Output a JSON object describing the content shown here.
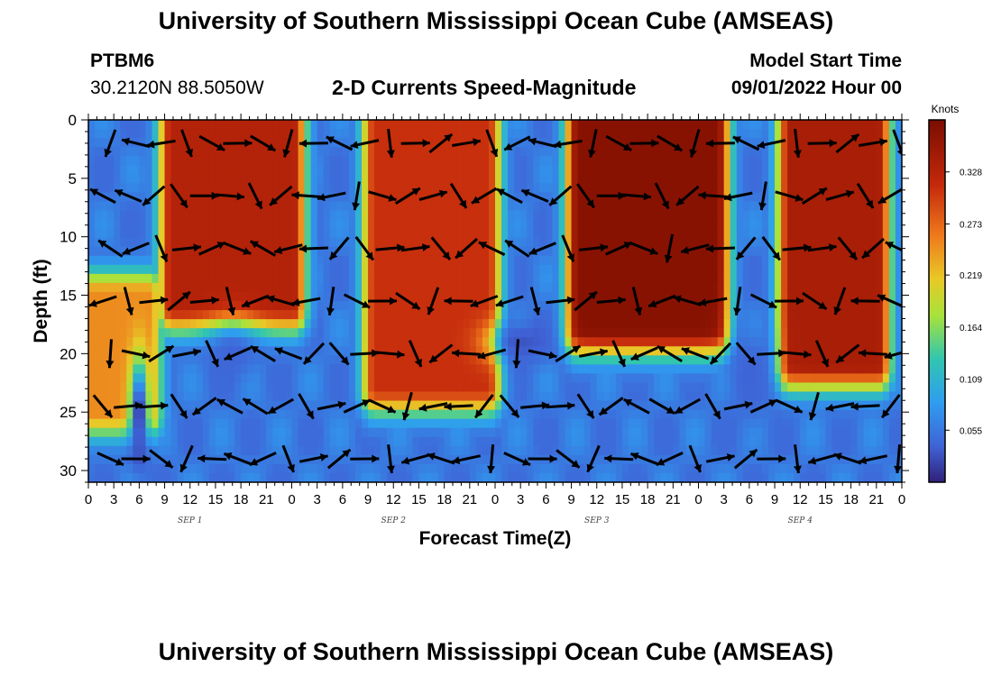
{
  "header": {
    "title": "University of Southern Mississippi Ocean Cube (AMSEAS)",
    "station": "PTBM6",
    "coords": "30.2120N  88.5050W",
    "plot_title": "2-D Currents Speed-Magnitude",
    "model_label": "Model Start Time",
    "model_time": "09/01/2022 Hour 00"
  },
  "footer": {
    "title": "University of Southern Mississippi Ocean Cube (AMSEAS)"
  },
  "colors": {
    "low": "#30207a",
    "mid": "#30c6b0",
    "high": "#7a0d00",
    "arrow": "#000000"
  },
  "chart_data": {
    "type": "heatmap",
    "title": "2-D Currents Speed-Magnitude",
    "xlabel": "Forecast Time(Z)",
    "ylabel": "Depth (ft)",
    "xlim": [
      0,
      96
    ],
    "ylim": [
      0,
      31
    ],
    "x_ticks": [
      0,
      3,
      6,
      9,
      12,
      15,
      18,
      21,
      24,
      27,
      30,
      33,
      36,
      39,
      42,
      45,
      48,
      51,
      54,
      57,
      60,
      63,
      66,
      69,
      72,
      75,
      78,
      81,
      84,
      87,
      90,
      93,
      96
    ],
    "x_tick_labels": [
      "0",
      "3",
      "6",
      "9",
      "12",
      "15",
      "18",
      "21",
      "0",
      "3",
      "6",
      "9",
      "12",
      "15",
      "18",
      "21",
      "0",
      "3",
      "6",
      "9",
      "12",
      "15",
      "18",
      "21",
      "0",
      "3",
      "6",
      "9",
      "12",
      "15",
      "18",
      "21",
      "0"
    ],
    "y_ticks": [
      0,
      5,
      10,
      15,
      20,
      25,
      30
    ],
    "y_tick_labels": [
      "0",
      "5",
      "10",
      "15",
      "20",
      "25",
      "30"
    ],
    "day_labels": [
      {
        "text": "SEP 1",
        "hour": 12
      },
      {
        "text": "SEP 2",
        "hour": 36
      },
      {
        "text": "SEP 3",
        "hour": 60
      },
      {
        "text": "SEP 4",
        "hour": 84
      }
    ],
    "colorbar": {
      "label": "Knots",
      "min": 0,
      "max": 0.383,
      "ticks": [
        0.055,
        0.109,
        0.164,
        0.219,
        0.273,
        0.328
      ],
      "tick_labels": [
        "0.055",
        "0.109",
        "0.164",
        "0.219",
        "0.273",
        "0.328"
      ]
    },
    "speed_peaks_knots": [
      {
        "hours": [
          11,
          23
        ],
        "depth_ft": [
          0,
          15
        ],
        "speed": 0.33
      },
      {
        "hours": [
          35,
          46
        ],
        "depth_ft": [
          0,
          22
        ],
        "speed": 0.31
      },
      {
        "hours": [
          59,
          73
        ],
        "depth_ft": [
          0,
          17
        ],
        "speed": 0.37
      },
      {
        "hours": [
          84,
          92
        ],
        "depth_ft": [
          0,
          20
        ],
        "speed": 0.34
      },
      {
        "hours": [
          0,
          6
        ],
        "depth_ft": [
          16,
          24
        ],
        "speed": 0.25
      }
    ],
    "vector_angles_deg": [
      {
        "hour": 2,
        "depth_ft": 2,
        "angle": 110
      },
      {
        "hour": 4,
        "depth_ft": 8,
        "angle": 90
      },
      {
        "hour": 11,
        "depth_ft": 2,
        "angle": 70
      },
      {
        "hour": 11,
        "depth_ft": 6,
        "angle": 70
      },
      {
        "hour": 14,
        "depth_ft": 0,
        "angle": 200
      },
      {
        "hour": 14,
        "depth_ft": 5,
        "angle": 210
      },
      {
        "hour": 19,
        "depth_ft": 4,
        "angle": 200
      },
      {
        "hour": 20,
        "depth_ft": 11,
        "angle": 210
      },
      {
        "hour": 2,
        "depth_ft": 12,
        "angle": 20
      },
      {
        "hour": 3,
        "depth_ft": 16,
        "angle": 20
      },
      {
        "hour": 4,
        "depth_ft": 21,
        "angle": 340
      },
      {
        "hour": 9,
        "depth_ft": 25,
        "angle": 345
      },
      {
        "hour": 12,
        "depth_ft": 28,
        "angle": 0
      },
      {
        "hour": 30,
        "depth_ft": 20,
        "angle": 0
      },
      {
        "hour": 36,
        "depth_ft": 12,
        "angle": 90
      },
      {
        "hour": 39,
        "depth_ft": 3,
        "angle": 200
      },
      {
        "hour": 47,
        "depth_ft": 16,
        "angle": 160
      },
      {
        "hour": 52,
        "depth_ft": 21,
        "angle": 100
      },
      {
        "hour": 62,
        "depth_ft": 0,
        "angle": 200
      },
      {
        "hour": 66,
        "depth_ft": 8,
        "angle": 200
      },
      {
        "hour": 68,
        "depth_ft": 25,
        "angle": 30
      },
      {
        "hour": 80,
        "depth_ft": 17,
        "angle": 90
      },
      {
        "hour": 87,
        "depth_ft": 3,
        "angle": 70
      },
      {
        "hour": 92,
        "depth_ft": 19,
        "angle": 210
      },
      {
        "hour": 95,
        "depth_ft": 12,
        "angle": 330
      }
    ]
  }
}
